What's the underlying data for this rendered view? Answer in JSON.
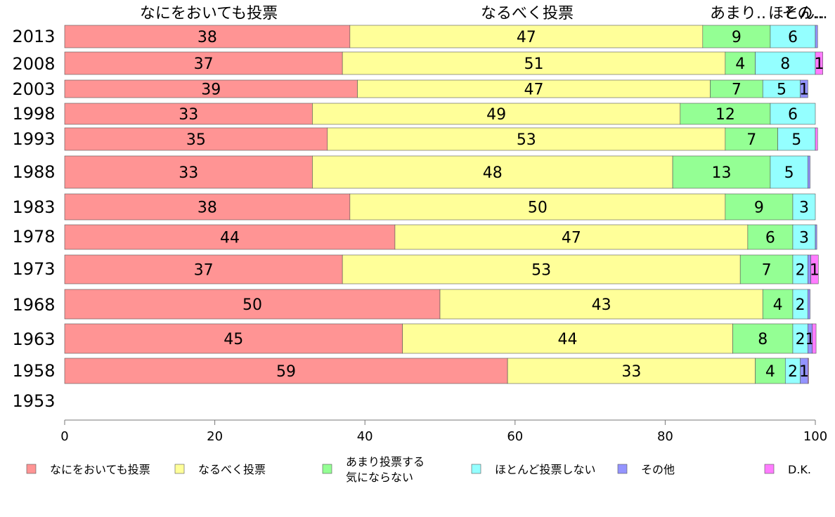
{
  "chart_data": {
    "type": "bar",
    "orientation": "horizontal",
    "stacked": true,
    "categories": [
      "2013",
      "2008",
      "2003",
      "1998",
      "1993",
      "1988",
      "1983",
      "1978",
      "1973",
      "1968",
      "1963",
      "1958",
      "1953"
    ],
    "top_labels": [
      "なにをおいても投票",
      "なるべく投票",
      "あまり..",
      "ほとん..",
      "その..."
    ],
    "series": [
      {
        "name": "なにをおいても投票",
        "color": "#ff9494",
        "values": [
          38,
          37,
          39,
          33,
          35,
          33,
          38,
          44,
          37,
          50,
          45,
          59,
          null
        ]
      },
      {
        "name": "なるべく投票",
        "color": "#ffff99",
        "values": [
          47,
          51,
          47,
          49,
          53,
          48,
          50,
          47,
          53,
          43,
          44,
          33,
          null
        ]
      },
      {
        "name": "あまり投票する気にならない",
        "color": "#94ff94",
        "values": [
          9,
          4,
          7,
          12,
          7,
          13,
          9,
          6,
          7,
          4,
          8,
          4,
          null
        ]
      },
      {
        "name": "ほとんど投票しない",
        "color": "#94ffff",
        "values": [
          6,
          8,
          5,
          6,
          5,
          5,
          3,
          3,
          2,
          2,
          2,
          2,
          null
        ]
      },
      {
        "name": "その他",
        "color": "#9494ff",
        "values": [
          0.3,
          0,
          1,
          0,
          0,
          0.3,
          0,
          0.2,
          0.4,
          0.3,
          0.6,
          1,
          null
        ]
      },
      {
        "name": "D.K.",
        "color": "#ff7cff",
        "values": [
          0,
          1,
          0,
          0,
          0.3,
          0,
          0,
          0,
          1,
          0,
          0.5,
          0.1,
          null
        ]
      }
    ],
    "data_labels": [
      [
        "38",
        "47",
        "9",
        "6",
        "",
        ""
      ],
      [
        "37",
        "51",
        "4",
        "8",
        "",
        "1"
      ],
      [
        "39",
        "47",
        "7",
        "5",
        "1",
        ""
      ],
      [
        "33",
        "49",
        "12",
        "6",
        "",
        ""
      ],
      [
        "35",
        "53",
        "7",
        "5",
        "",
        ""
      ],
      [
        "33",
        "48",
        "13",
        "5",
        "",
        ""
      ],
      [
        "38",
        "50",
        "9",
        "3",
        "",
        ""
      ],
      [
        "44",
        "47",
        "6",
        "3",
        "",
        ""
      ],
      [
        "37",
        "53",
        "7",
        "2",
        "",
        "1"
      ],
      [
        "50",
        "43",
        "4",
        "2",
        "",
        ""
      ],
      [
        "45",
        "44",
        "8",
        "2",
        "1",
        ""
      ],
      [
        "59",
        "33",
        "4",
        "2",
        "1",
        ""
      ],
      [
        "",
        "",
        "",
        "",
        "",
        ""
      ]
    ],
    "xlim": [
      0,
      100
    ],
    "xticks": [
      "0",
      "20",
      "40",
      "60",
      "80",
      "100"
    ],
    "legend": {
      "placement": "bottom",
      "items": [
        {
          "lines": [
            "なにをおいても投票"
          ],
          "color": "#ff9494"
        },
        {
          "lines": [
            "なるべく投票"
          ],
          "color": "#ffff99"
        },
        {
          "lines": [
            "あまり投票する",
            "気にならない"
          ],
          "color": "#94ff94"
        },
        {
          "lines": [
            "ほとんど投票しない"
          ],
          "color": "#94ffff"
        },
        {
          "lines": [
            "その他"
          ],
          "color": "#9494ff"
        },
        {
          "lines": [
            "D.K."
          ],
          "color": "#ff7cff"
        }
      ]
    },
    "grid": false
  }
}
